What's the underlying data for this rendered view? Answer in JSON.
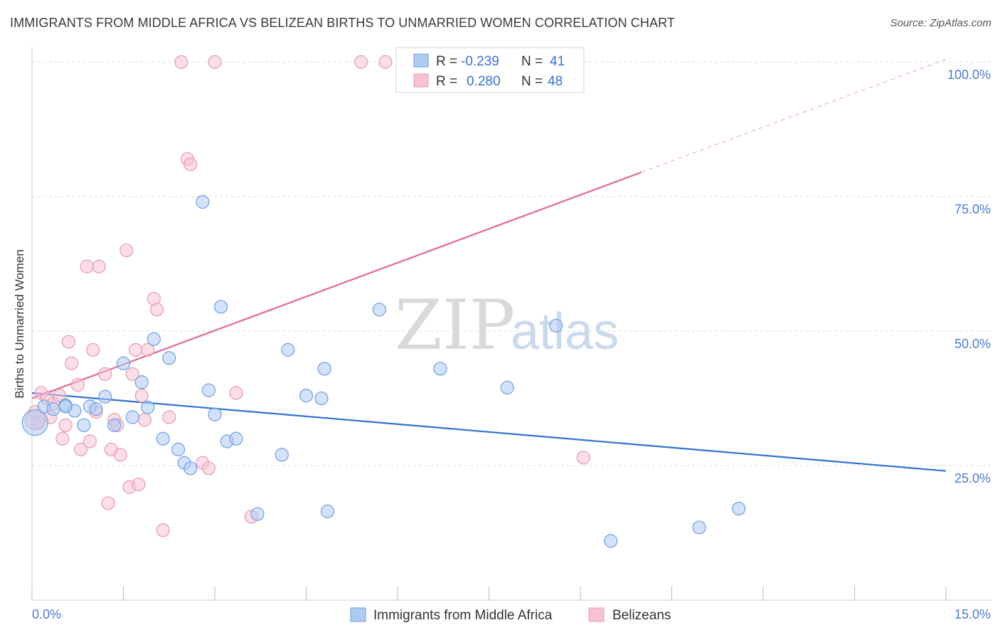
{
  "title": "IMMIGRANTS FROM MIDDLE AFRICA VS BELIZEAN BIRTHS TO UNMARRIED WOMEN CORRELATION CHART",
  "source": "Source: ZipAtlas.com",
  "watermark": {
    "zip": "ZIP",
    "atlas": "atlas"
  },
  "colors": {
    "blue_fill": "#aecbf2",
    "blue_stroke": "#6f9fe0",
    "blue_line": "#2f72d0",
    "pink_fill": "#f7c3d4",
    "pink_stroke": "#e79ab4",
    "pink_line": "#e06a94",
    "grid": "#dddddd",
    "tick_label": "#4a7bd0"
  },
  "legend": {
    "rows": [
      {
        "r_label": "R =",
        "r_value": "-0.239",
        "n_label": "N =",
        "n_value": "41"
      },
      {
        "r_label": "R =",
        "r_value": "0.280",
        "n_label": "N =",
        "n_value": "48"
      }
    ]
  },
  "bottom_legend": [
    "Immigrants from Middle Africa",
    "Belizeans"
  ],
  "chart_data": {
    "type": "scatter",
    "title": "IMMIGRANTS FROM MIDDLE AFRICA VS BELIZEAN BIRTHS TO UNMARRIED WOMEN CORRELATION CHART",
    "xlabel": "",
    "ylabel": "Births to Unmarried Women",
    "xlim": [
      0,
      15
    ],
    "ylim": [
      0,
      102
    ],
    "x_tick_labels": [
      "0.0%",
      "15.0%"
    ],
    "y_ticks": [
      25,
      50,
      75,
      100
    ],
    "y_tick_labels": [
      "25.0%",
      "50.0%",
      "75.0%",
      "100.0%"
    ],
    "grid": true,
    "series": [
      {
        "name": "Immigrants from Middle Africa",
        "r": -0.239,
        "n": 41,
        "trend": {
          "x0": 0.0,
          "y0": 38.5,
          "x1": 15.0,
          "y1": 24.0
        },
        "points": [
          [
            0.05,
            33.0,
            18
          ],
          [
            0.2,
            36.0,
            9
          ],
          [
            0.35,
            35.5,
            9
          ],
          [
            0.55,
            36.2,
            9
          ],
          [
            0.7,
            35.2,
            9
          ],
          [
            0.85,
            32.5,
            9
          ],
          [
            0.95,
            36.0,
            9
          ],
          [
            1.05,
            35.5,
            9
          ],
          [
            1.2,
            37.8,
            9
          ],
          [
            1.35,
            32.5,
            9
          ],
          [
            1.5,
            44.0,
            9
          ],
          [
            1.65,
            34.0,
            9
          ],
          [
            1.8,
            40.5,
            9
          ],
          [
            1.9,
            35.8,
            9
          ],
          [
            2.0,
            48.5,
            9
          ],
          [
            2.15,
            30.0,
            9
          ],
          [
            2.25,
            45.0,
            9
          ],
          [
            2.4,
            28.0,
            9
          ],
          [
            2.5,
            25.5,
            9
          ],
          [
            2.6,
            24.5,
            9
          ],
          [
            2.8,
            74.0,
            9
          ],
          [
            2.9,
            39.0,
            9
          ],
          [
            3.0,
            34.5,
            9
          ],
          [
            3.1,
            54.5,
            9
          ],
          [
            3.2,
            29.5,
            9
          ],
          [
            3.35,
            30.0,
            9
          ],
          [
            3.7,
            16.0,
            9
          ],
          [
            4.1,
            27.0,
            9
          ],
          [
            4.2,
            46.5,
            9
          ],
          [
            4.5,
            38.0,
            9
          ],
          [
            4.75,
            37.5,
            9
          ],
          [
            4.8,
            43.0,
            9
          ],
          [
            4.85,
            16.5,
            9
          ],
          [
            5.7,
            54.0,
            9
          ],
          [
            6.7,
            43.0,
            9
          ],
          [
            7.8,
            39.5,
            9
          ],
          [
            8.6,
            51.0,
            9
          ],
          [
            9.5,
            11.0,
            9
          ],
          [
            10.95,
            13.5,
            9
          ],
          [
            11.6,
            17.0,
            9
          ],
          [
            0.55,
            36.0,
            9
          ]
        ]
      },
      {
        "name": "Belizeans",
        "r": 0.28,
        "n": 48,
        "trend": {
          "x0": 0.0,
          "y0": 37.5,
          "x1": 10.0,
          "y1": 79.5
        },
        "trend_dashed": {
          "x0": 10.0,
          "y0": 79.5,
          "x1": 15.0,
          "y1": 100.5
        },
        "points": [
          [
            0.05,
            35.0,
            9
          ],
          [
            0.1,
            33.0,
            9
          ],
          [
            0.15,
            38.5,
            9
          ],
          [
            0.25,
            37.5,
            9
          ],
          [
            0.3,
            34.0,
            9
          ],
          [
            0.35,
            36.5,
            9
          ],
          [
            0.45,
            38.0,
            9
          ],
          [
            0.55,
            32.5,
            9
          ],
          [
            0.6,
            48.0,
            9
          ],
          [
            0.5,
            30.0,
            9
          ],
          [
            0.65,
            44.0,
            9
          ],
          [
            0.75,
            40.0,
            9
          ],
          [
            0.8,
            28.0,
            9
          ],
          [
            0.9,
            62.0,
            9
          ],
          [
            0.95,
            29.5,
            9
          ],
          [
            1.0,
            46.5,
            9
          ],
          [
            1.05,
            35.0,
            9
          ],
          [
            1.1,
            62.0,
            9
          ],
          [
            1.2,
            42.0,
            9
          ],
          [
            1.25,
            18.0,
            9
          ],
          [
            1.3,
            28.0,
            9
          ],
          [
            1.35,
            33.5,
            9
          ],
          [
            1.4,
            32.5,
            9
          ],
          [
            1.45,
            27.0,
            9
          ],
          [
            1.55,
            65.0,
            9
          ],
          [
            1.6,
            21.0,
            9
          ],
          [
            1.65,
            42.0,
            9
          ],
          [
            1.7,
            46.5,
            9
          ],
          [
            1.75,
            21.5,
            9
          ],
          [
            1.8,
            38.0,
            9
          ],
          [
            1.85,
            33.5,
            9
          ],
          [
            1.9,
            46.5,
            9
          ],
          [
            2.0,
            56.0,
            9
          ],
          [
            2.05,
            54.0,
            9
          ],
          [
            2.15,
            13.0,
            9
          ],
          [
            2.25,
            34.0,
            9
          ],
          [
            2.45,
            100.0,
            9
          ],
          [
            2.55,
            82.0,
            9
          ],
          [
            2.6,
            81.0,
            9
          ],
          [
            2.8,
            25.5,
            9
          ],
          [
            2.9,
            24.5,
            9
          ],
          [
            3.0,
            100.0,
            9
          ],
          [
            3.35,
            38.5,
            9
          ],
          [
            3.6,
            15.5,
            9
          ],
          [
            5.4,
            100.0,
            9
          ],
          [
            5.8,
            100.0,
            9
          ],
          [
            9.05,
            26.5,
            9
          ],
          [
            0.05,
            33.5,
            14
          ]
        ]
      }
    ]
  }
}
